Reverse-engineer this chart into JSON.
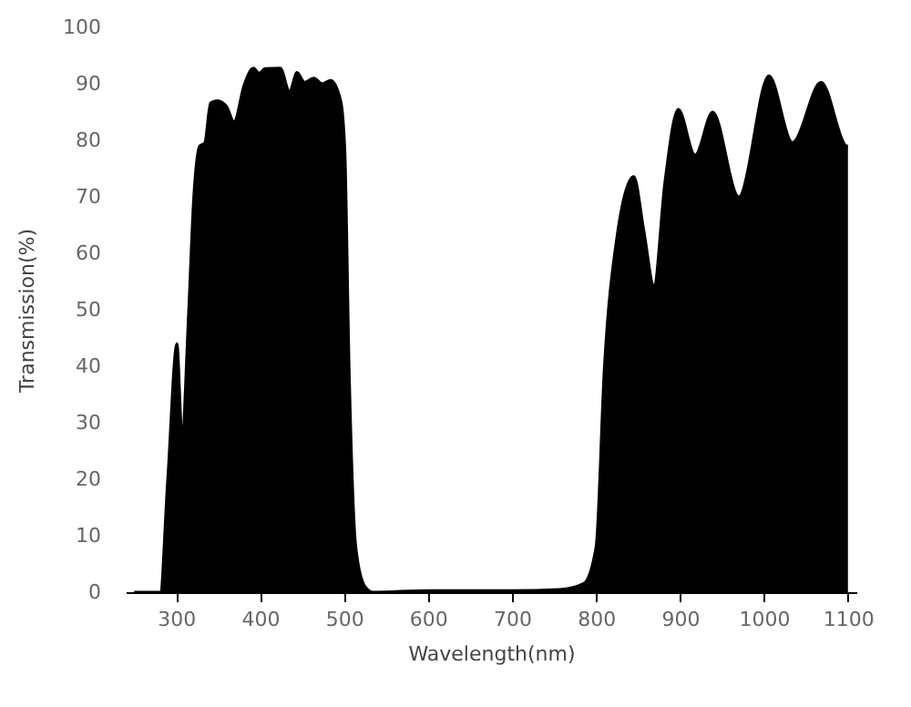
{
  "chart_data": {
    "type": "area",
    "xlabel": "Wavelength(nm)",
    "ylabel": "Transmission(%)",
    "xlim": [
      240,
      1110
    ],
    "ylim": [
      0,
      100
    ],
    "xticks": [
      300,
      400,
      500,
      600,
      700,
      800,
      900,
      1000,
      1100
    ],
    "yticks": [
      0,
      10,
      20,
      30,
      40,
      50,
      60,
      70,
      80,
      90,
      100
    ],
    "grid": false,
    "series": [
      {
        "color": "#000000",
        "x": [
          250,
          281,
          290,
          301,
          307,
          315,
          321,
          328,
          334,
          341,
          349,
          360,
          369,
          381,
          392,
          399,
          406,
          424,
          435,
          444,
          453,
          464,
          474,
          484,
          496,
          501,
          506,
          514,
          525,
          535,
          600,
          650,
          700,
          757,
          785,
          800,
          810,
          825,
          845,
          857,
          869,
          882,
          898,
          918,
          939,
          970,
          1006,
          1034,
          1068,
          1099,
          1100
        ],
        "values": [
          0,
          0,
          20,
          44,
          28,
          50,
          70,
          79,
          79.5,
          86.6,
          87,
          86,
          83.3,
          89.8,
          92.8,
          91.9,
          92.7,
          92.8,
          88.7,
          92,
          90.3,
          91,
          90,
          90.6,
          87,
          78,
          40,
          8,
          1,
          0,
          0.3,
          0.3,
          0.3,
          0.5,
          1.5,
          8,
          40,
          63,
          73.6,
          64,
          54.3,
          72.6,
          85.5,
          77.4,
          85,
          70,
          91.4,
          79.6,
          90.3,
          79,
          79
        ]
      }
    ]
  }
}
